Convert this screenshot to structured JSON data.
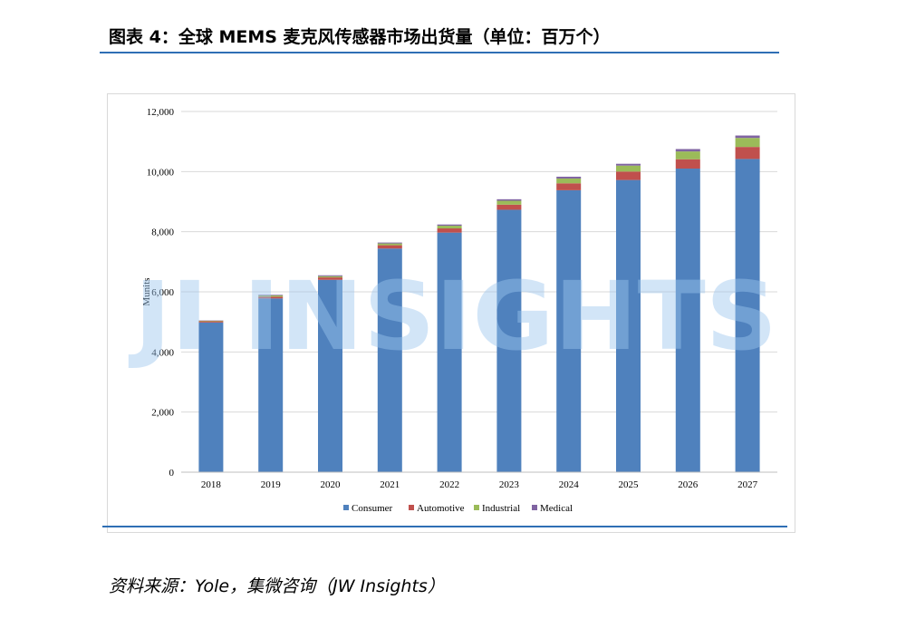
{
  "header": {
    "title": "图表 4：全球 MEMS 麦克风传感器市场出货量（单位：百万个）"
  },
  "footer": {
    "source": "资料来源：Yole，集微咨询（JW Insights）"
  },
  "watermark": {
    "text": "JI INSIGHTS"
  },
  "colors": {
    "consumer": "#4f81bd",
    "automotive": "#c0504d",
    "industrial": "#9bbb59",
    "medical": "#8064a2",
    "rule": "#2f6fb5"
  },
  "chart_data": {
    "type": "bar",
    "stacked": true,
    "categories": [
      "2018",
      "2019",
      "2020",
      "2021",
      "2022",
      "2023",
      "2024",
      "2025",
      "2026",
      "2027"
    ],
    "series": [
      {
        "name": "Consumer",
        "values": [
          4980,
          5780,
          6400,
          7440,
          7970,
          8730,
          9380,
          9720,
          10100,
          10420
        ]
      },
      {
        "name": "Automotive",
        "values": [
          40,
          60,
          80,
          110,
          140,
          170,
          230,
          280,
          310,
          400
        ]
      },
      {
        "name": "Industrial",
        "values": [
          20,
          40,
          40,
          60,
          90,
          130,
          160,
          200,
          260,
          300
        ]
      },
      {
        "name": "Medical",
        "values": [
          10,
          20,
          30,
          30,
          40,
          50,
          60,
          60,
          80,
          80
        ]
      }
    ],
    "ylabel": "Munits",
    "ylim": [
      0,
      12000
    ],
    "yticks": [
      0,
      2000,
      4000,
      6000,
      8000,
      10000,
      12000
    ],
    "ytick_labels": [
      "0",
      "2,000",
      "4,000",
      "6,000",
      "8,000",
      "10,000",
      "12,000"
    ],
    "grid": true,
    "legend": "bottom"
  }
}
